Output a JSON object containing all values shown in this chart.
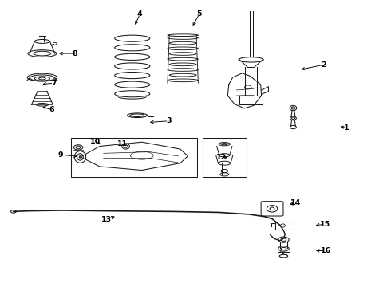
{
  "bg_color": "#ffffff",
  "line_color": "#1a1a1a",
  "label_color": "#000000",
  "figsize": [
    4.9,
    3.6
  ],
  "dpi": 100,
  "labels": {
    "1": [
      0.895,
      0.555,
      0.872,
      0.562
    ],
    "2": [
      0.835,
      0.78,
      0.77,
      0.762
    ],
    "3": [
      0.43,
      0.58,
      0.375,
      0.575
    ],
    "4": [
      0.355,
      0.96,
      0.34,
      0.915
    ],
    "5": [
      0.51,
      0.96,
      0.49,
      0.912
    ],
    "6": [
      0.125,
      0.62,
      0.095,
      0.632
    ],
    "7": [
      0.13,
      0.715,
      0.095,
      0.71
    ],
    "8": [
      0.185,
      0.82,
      0.138,
      0.82
    ],
    "9": [
      0.148,
      0.46,
      0.198,
      0.453
    ],
    "10": [
      0.238,
      0.508,
      0.258,
      0.493
    ],
    "11": [
      0.31,
      0.5,
      0.323,
      0.487
    ],
    "12": [
      0.568,
      0.45,
      0.59,
      0.45
    ],
    "13": [
      0.268,
      0.23,
      0.295,
      0.243
    ],
    "14": [
      0.762,
      0.288,
      0.74,
      0.282
    ],
    "15": [
      0.838,
      0.213,
      0.808,
      0.208
    ],
    "16": [
      0.84,
      0.118,
      0.808,
      0.12
    ]
  }
}
